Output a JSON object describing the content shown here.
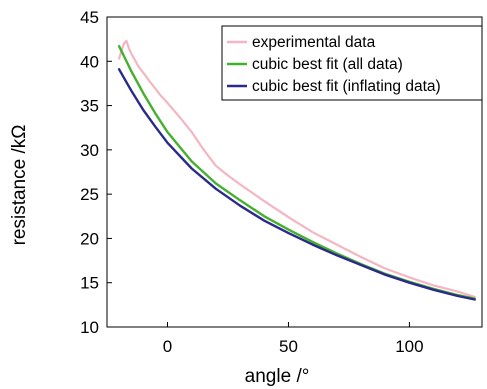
{
  "chart_data": {
    "type": "line",
    "title": "",
    "xlabel": "angle /°",
    "ylabel": "resistance /kΩ",
    "xlim": [
      -25,
      130
    ],
    "ylim": [
      10,
      45
    ],
    "xticks": [
      0,
      50,
      100
    ],
    "yticks": [
      10,
      15,
      20,
      25,
      30,
      35,
      40,
      45
    ],
    "grid": false,
    "legend_position": "top-right",
    "series": [
      {
        "name": "experimental data",
        "color": "#f4b6c2",
        "points": [
          [
            -20,
            40.3
          ],
          [
            -19,
            41.2
          ],
          [
            -18,
            42.0
          ],
          [
            -17,
            42.3
          ],
          [
            -16,
            41.5
          ],
          [
            -15,
            40.9
          ],
          [
            -12,
            39.4
          ],
          [
            -10,
            38.7
          ],
          [
            -7,
            37.6
          ],
          [
            -5,
            36.9
          ],
          [
            -3,
            36.2
          ],
          [
            0,
            35.3
          ],
          [
            5,
            33.7
          ],
          [
            10,
            32.0
          ],
          [
            15,
            30.0
          ],
          [
            20,
            28.2
          ],
          [
            25,
            27.1
          ],
          [
            30,
            26.1
          ],
          [
            40,
            24.2
          ],
          [
            50,
            22.4
          ],
          [
            60,
            20.7
          ],
          [
            70,
            19.3
          ],
          [
            80,
            17.9
          ],
          [
            90,
            16.6
          ],
          [
            100,
            15.6
          ],
          [
            110,
            14.7
          ],
          [
            120,
            14.0
          ],
          [
            127,
            13.4
          ]
        ]
      },
      {
        "name": "cubic best fit (all data)",
        "color": "#44b02e",
        "points": [
          [
            -20,
            41.7
          ],
          [
            -15,
            38.9
          ],
          [
            -10,
            36.4
          ],
          [
            -5,
            34.1
          ],
          [
            0,
            32.0
          ],
          [
            10,
            28.7
          ],
          [
            20,
            26.2
          ],
          [
            30,
            24.3
          ],
          [
            40,
            22.5
          ],
          [
            50,
            21.0
          ],
          [
            60,
            19.6
          ],
          [
            70,
            18.3
          ],
          [
            80,
            17.1
          ],
          [
            90,
            16.0
          ],
          [
            100,
            15.1
          ],
          [
            110,
            14.3
          ],
          [
            120,
            13.6
          ],
          [
            127,
            13.2
          ]
        ]
      },
      {
        "name": "cubic best fit (inflating data)",
        "color": "#2b2a8c",
        "points": [
          [
            -20,
            39.1
          ],
          [
            -15,
            36.7
          ],
          [
            -10,
            34.5
          ],
          [
            -5,
            32.6
          ],
          [
            0,
            30.8
          ],
          [
            10,
            27.9
          ],
          [
            20,
            25.6
          ],
          [
            30,
            23.7
          ],
          [
            40,
            22.0
          ],
          [
            50,
            20.6
          ],
          [
            60,
            19.3
          ],
          [
            70,
            18.1
          ],
          [
            80,
            17.0
          ],
          [
            90,
            15.9
          ],
          [
            100,
            15.0
          ],
          [
            110,
            14.2
          ],
          [
            120,
            13.5
          ],
          [
            127,
            13.1
          ]
        ]
      }
    ]
  }
}
